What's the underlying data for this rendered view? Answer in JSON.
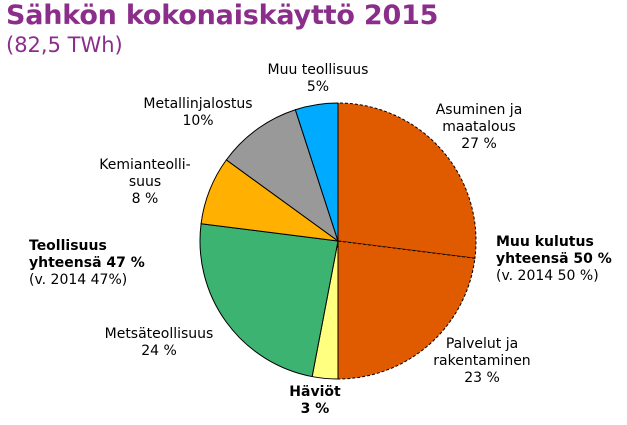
{
  "title": "Sähkön kokonaiskäyttö 2015",
  "subtitle": "(82,5 TWh)",
  "chart_data": {
    "type": "pie",
    "title": "Sähkön kokonaiskäyttö 2015",
    "subtitle": "(82,5 TWh)",
    "start": "12 o'clock",
    "direction": "clockwise",
    "slices": [
      {
        "name_lines": [
          "Asuminen ja",
          "maatalous"
        ],
        "value": 27,
        "value_label": "27 %",
        "color": "#E05A00",
        "dashed": true
      },
      {
        "name_lines": [
          "Palvelut ja",
          "rakentaminen"
        ],
        "value": 23,
        "value_label": "23 %",
        "color": "#E05A00",
        "dashed": true
      },
      {
        "name_lines": [
          "Häviöt"
        ],
        "value": 3,
        "value_label": "3 %",
        "color": "#FFFF80",
        "bold": true
      },
      {
        "name_lines": [
          "Metsäteollisuus"
        ],
        "value": 24,
        "value_label": "24 %",
        "color": "#3CB371"
      },
      {
        "name_lines": [
          "Kemianteolli-",
          "suus"
        ],
        "value": 8,
        "value_label": "8 %",
        "color": "#FFB000"
      },
      {
        "name_lines": [
          "Metallinjalostus"
        ],
        "value": 10,
        "value_label": "10%",
        "color": "#999999"
      },
      {
        "name_lines": [
          "Muu teollisuus"
        ],
        "value": 5,
        "value_label": "5%",
        "color": "#00AAFF"
      }
    ],
    "group_labels": {
      "industry": {
        "line1": "Teollisuus",
        "line2": "yhteensä 47 %",
        "line3": "(v. 2014 47%)"
      },
      "other": {
        "line1": "Muu kulutus",
        "line2": "yhteensä 50 %",
        "line3": "(v. 2014 50 %)"
      }
    }
  }
}
